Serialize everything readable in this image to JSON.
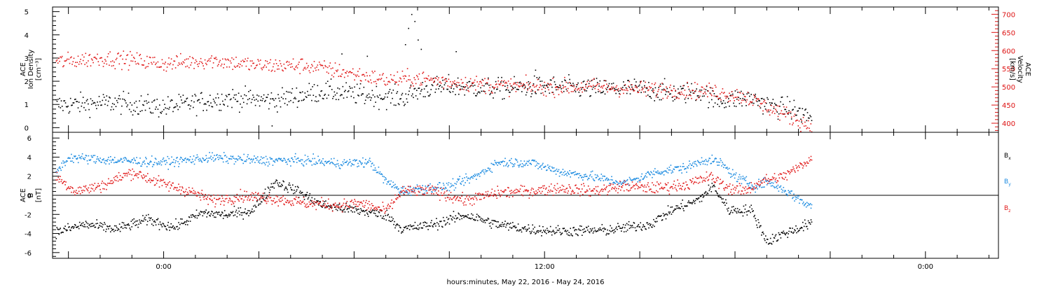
{
  "colors": {
    "black": "#000000",
    "red": "#e11a1a",
    "blue": "#1a8ae0",
    "axis_red": "#dd1111"
  },
  "chart_data": [
    {
      "id": "top",
      "type": "scatter",
      "title": "",
      "left_axis": {
        "label_lines": [
          "ACE",
          "Ion Density",
          "[cm⁻³]"
        ],
        "ylim": [
          -0.2,
          5.2
        ],
        "ticks": [
          "0",
          "1",
          "2",
          "3",
          "4",
          "5"
        ],
        "tick_values": [
          0,
          1,
          2,
          3,
          4,
          5
        ]
      },
      "right_axis": {
        "label_lines": [
          "ACE",
          "Velocity",
          "[km/s]"
        ],
        "ylim": [
          375,
          720
        ],
        "ticks": [
          "400",
          "450",
          "500",
          "550",
          "600",
          "650",
          "700"
        ],
        "tick_values": [
          400,
          450,
          500,
          550,
          600,
          650,
          700
        ],
        "color": "#dd1111"
      },
      "x_range_hours": [
        -3.5,
        26.3
      ],
      "series": [
        {
          "key": "density",
          "axis": "left",
          "color": "#000000",
          "anchors": [
            [
              -3.4,
              1.0
            ],
            [
              -1.5,
              1.1
            ],
            [
              0.0,
              0.9
            ],
            [
              2.0,
              1.3
            ],
            [
              3.5,
              1.2
            ],
            [
              5.0,
              1.6
            ],
            [
              6.5,
              1.4
            ],
            [
              7.5,
              1.3
            ],
            [
              8.2,
              1.7
            ],
            [
              9.0,
              1.8
            ],
            [
              10.5,
              1.7
            ],
            [
              12.0,
              1.8
            ],
            [
              13.5,
              1.7
            ],
            [
              15.0,
              1.7
            ],
            [
              16.2,
              1.5
            ],
            [
              17.0,
              1.6
            ],
            [
              17.3,
              1.2
            ],
            [
              18.5,
              1.3
            ],
            [
              19.0,
              1.0
            ],
            [
              19.8,
              0.8
            ],
            [
              20.3,
              0.5
            ]
          ],
          "spread": 0.45
        },
        {
          "key": "velocity",
          "axis": "right",
          "color": "#e11a1a",
          "anchors": [
            [
              -3.4,
              570
            ],
            [
              -2.0,
              580
            ],
            [
              -1.0,
              575
            ],
            [
              0.0,
              565
            ],
            [
              1.5,
              575
            ],
            [
              3.0,
              560
            ],
            [
              4.5,
              560
            ],
            [
              5.5,
              545
            ],
            [
              7.0,
              520
            ],
            [
              8.0,
              525
            ],
            [
              9.0,
              515
            ],
            [
              10.5,
              505
            ],
            [
              12.0,
              500
            ],
            [
              13.5,
              502
            ],
            [
              15.0,
              495
            ],
            [
              16.5,
              492
            ],
            [
              17.3,
              488
            ],
            [
              18.3,
              475
            ],
            [
              19.0,
              445
            ],
            [
              19.6,
              425
            ],
            [
              20.3,
              395
            ]
          ],
          "spread": 22
        }
      ],
      "annotations": [
        {
          "x": 7.8,
          "y": 4.9,
          "axis": "left"
        },
        {
          "x": 7.9,
          "y": 4.6,
          "axis": "left"
        },
        {
          "x": 7.7,
          "y": 4.3,
          "axis": "left"
        },
        {
          "x": 8.0,
          "y": 3.8,
          "axis": "left"
        },
        {
          "x": 7.6,
          "y": 3.6,
          "axis": "left"
        },
        {
          "x": 8.1,
          "y": 3.4,
          "axis": "left"
        },
        {
          "x": 5.6,
          "y": 3.2,
          "axis": "left"
        },
        {
          "x": 6.4,
          "y": 3.1,
          "axis": "left"
        },
        {
          "x": 9.2,
          "y": 3.3,
          "axis": "left"
        },
        {
          "x": 11.7,
          "y": 2.5,
          "axis": "left"
        },
        {
          "x": 3.4,
          "y": 0.1,
          "axis": "left"
        }
      ]
    },
    {
      "id": "bottom",
      "type": "scatter",
      "title": "",
      "left_axis": {
        "label_lines": [
          "ACE",
          "B",
          "[nT]"
        ],
        "ylim": [
          -6.6,
          6.6
        ],
        "ticks": [
          "-6",
          "-4",
          "-2",
          "0",
          "2",
          "4",
          "6"
        ],
        "tick_values": [
          -6,
          -4,
          -2,
          0,
          2,
          4,
          6
        ]
      },
      "x_range_hours": [
        -3.5,
        26.3
      ],
      "zero_line": true,
      "series": [
        {
          "key": "bx",
          "name": "Bx",
          "color": "#000000",
          "anchors": [
            [
              -3.4,
              -3.8
            ],
            [
              -2.5,
              -3.0
            ],
            [
              -1.5,
              -3.5
            ],
            [
              -0.5,
              -2.5
            ],
            [
              0.3,
              -3.3
            ],
            [
              1.2,
              -1.8
            ],
            [
              2.0,
              -2.0
            ],
            [
              2.8,
              -1.5
            ],
            [
              3.5,
              1.5
            ],
            [
              4.2,
              0.5
            ],
            [
              5.0,
              -1.0
            ],
            [
              6.0,
              -1.5
            ],
            [
              7.0,
              -2.0
            ],
            [
              7.5,
              -3.5
            ],
            [
              8.5,
              -3.0
            ],
            [
              9.5,
              -2.0
            ],
            [
              10.5,
              -3.0
            ],
            [
              11.5,
              -3.5
            ],
            [
              12.5,
              -3.7
            ],
            [
              14.0,
              -3.6
            ],
            [
              15.3,
              -3.0
            ],
            [
              16.0,
              -1.5
            ],
            [
              16.8,
              -0.5
            ],
            [
              17.3,
              1.0
            ],
            [
              17.8,
              -1.5
            ],
            [
              18.5,
              -1.5
            ],
            [
              19.0,
              -4.8
            ],
            [
              19.5,
              -4.0
            ],
            [
              20.3,
              -3.0
            ]
          ],
          "spread": 0.55
        },
        {
          "key": "by",
          "name": "By",
          "color": "#1a8ae0",
          "anchors": [
            [
              -3.4,
              2.5
            ],
            [
              -3.0,
              4.0
            ],
            [
              -1.5,
              3.7
            ],
            [
              0.0,
              3.5
            ],
            [
              1.5,
              4.0
            ],
            [
              3.0,
              3.7
            ],
            [
              4.5,
              3.7
            ],
            [
              5.5,
              3.4
            ],
            [
              6.5,
              3.5
            ],
            [
              7.0,
              1.5
            ],
            [
              7.5,
              0.5
            ],
            [
              8.2,
              0.8
            ],
            [
              9.0,
              1.0
            ],
            [
              9.8,
              2.0
            ],
            [
              10.5,
              3.5
            ],
            [
              11.5,
              3.5
            ],
            [
              12.5,
              2.5
            ],
            [
              13.5,
              2.0
            ],
            [
              14.5,
              1.3
            ],
            [
              15.5,
              2.5
            ],
            [
              16.5,
              3.0
            ],
            [
              17.0,
              3.8
            ],
            [
              17.5,
              3.5
            ],
            [
              18.0,
              2.0
            ],
            [
              18.6,
              1.0
            ],
            [
              19.0,
              1.5
            ],
            [
              19.6,
              0.5
            ],
            [
              20.3,
              -1.0
            ]
          ],
          "spread": 0.5
        },
        {
          "key": "bz",
          "name": "Bz",
          "color": "#e11a1a",
          "anchors": [
            [
              -3.4,
              2.0
            ],
            [
              -2.8,
              0.5
            ],
            [
              -2.0,
              1.0
            ],
            [
              -1.0,
              2.5
            ],
            [
              0.0,
              1.2
            ],
            [
              0.8,
              0.5
            ],
            [
              1.5,
              -0.5
            ],
            [
              2.5,
              0.0
            ],
            [
              3.5,
              -0.3
            ],
            [
              4.5,
              -0.8
            ],
            [
              5.5,
              -1.0
            ],
            [
              6.2,
              -0.8
            ],
            [
              7.0,
              -1.6
            ],
            [
              7.5,
              0.5
            ],
            [
              8.5,
              0.5
            ],
            [
              9.5,
              -0.5
            ],
            [
              10.5,
              0.3
            ],
            [
              11.5,
              0.5
            ],
            [
              12.5,
              0.8
            ],
            [
              13.5,
              0.5
            ],
            [
              14.5,
              1.0
            ],
            [
              15.5,
              0.8
            ],
            [
              16.5,
              1.2
            ],
            [
              17.2,
              2.0
            ],
            [
              17.8,
              0.8
            ],
            [
              18.3,
              0.5
            ],
            [
              18.8,
              1.5
            ],
            [
              19.5,
              2.0
            ],
            [
              20.0,
              3.0
            ],
            [
              20.3,
              3.8
            ]
          ],
          "spread": 0.6
        }
      ],
      "legend": [
        {
          "text": "Bx",
          "base": "B",
          "sub": "x",
          "color": "#000000"
        },
        {
          "text": "By",
          "base": "B",
          "sub": "y",
          "color": "#1a8ae0"
        },
        {
          "text": "Bz",
          "base": "B",
          "sub": "z",
          "color": "#e11a1a"
        }
      ],
      "legend_placement": "right"
    }
  ],
  "x_axis": {
    "ticks": [
      "0:00",
      "12:00",
      "0:00"
    ],
    "tick_hours": [
      0,
      12,
      24
    ],
    "minor_step_hours": 1,
    "major_step_hours": 3,
    "title": "hours:minutes, May 22, 2016 - May 24, 2016"
  }
}
